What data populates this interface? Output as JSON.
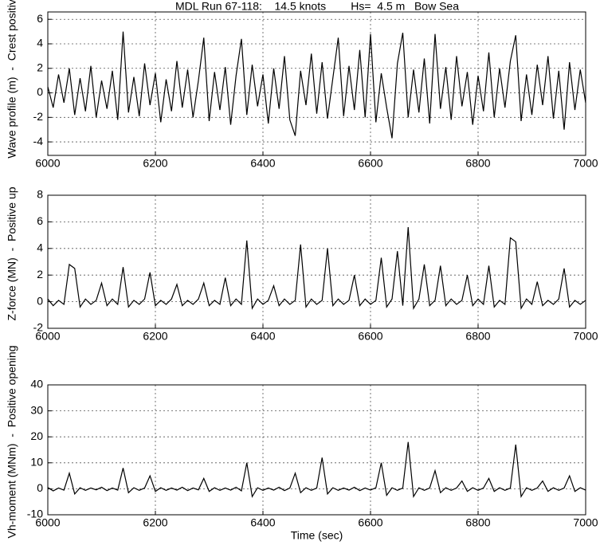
{
  "chart_data": [
    {
      "type": "line",
      "title": "MDL Run 67-118:    14.5 knots        Hs=  4.5 m   Bow Sea",
      "ylabel": "Wave profile (m)  -  Crest positive",
      "grid": true,
      "color": "#000000",
      "xlim": [
        6000,
        7000
      ],
      "xticks": [
        6000,
        6200,
        6400,
        6600,
        6800,
        7000
      ],
      "ylim": [
        -5.1,
        6.6
      ],
      "yticks": [
        -4,
        -2,
        0,
        2,
        4,
        6
      ],
      "x": [
        6000,
        6010,
        6020,
        6030,
        6040,
        6050,
        6060,
        6070,
        6080,
        6090,
        6100,
        6110,
        6120,
        6130,
        6140,
        6150,
        6160,
        6170,
        6180,
        6190,
        6200,
        6210,
        6220,
        6230,
        6240,
        6250,
        6260,
        6270,
        6280,
        6290,
        6300,
        6310,
        6320,
        6330,
        6340,
        6350,
        6360,
        6370,
        6380,
        6390,
        6400,
        6410,
        6420,
        6430,
        6440,
        6450,
        6460,
        6470,
        6480,
        6490,
        6500,
        6510,
        6520,
        6530,
        6540,
        6550,
        6560,
        6570,
        6580,
        6590,
        6600,
        6610,
        6620,
        6630,
        6640,
        6650,
        6660,
        6670,
        6680,
        6690,
        6700,
        6710,
        6720,
        6730,
        6740,
        6750,
        6760,
        6770,
        6780,
        6790,
        6800,
        6810,
        6820,
        6830,
        6840,
        6850,
        6860,
        6870,
        6880,
        6890,
        6900,
        6910,
        6920,
        6930,
        6940,
        6950,
        6960,
        6970,
        6980,
        6990,
        7000
      ],
      "values": [
        0.5,
        -1.2,
        1.5,
        -0.8,
        2.0,
        -1.8,
        1.2,
        -1.5,
        2.2,
        -2.0,
        1.0,
        -1.3,
        1.8,
        -2.2,
        5.0,
        -1.6,
        1.3,
        -1.9,
        2.4,
        -1.0,
        1.6,
        -2.4,
        1.1,
        -1.5,
        2.6,
        -1.2,
        1.9,
        -2.0,
        1.0,
        4.5,
        -2.3,
        1.7,
        -1.4,
        2.1,
        -2.6,
        1.4,
        4.4,
        -1.8,
        2.3,
        -1.1,
        1.5,
        -2.5,
        2.0,
        -1.3,
        3.0,
        -2.2,
        -3.5,
        1.8,
        -1.0,
        3.2,
        -1.7,
        2.5,
        -2.1,
        1.2,
        4.5,
        -1.9,
        2.2,
        -1.4,
        3.5,
        -2.0,
        4.8,
        -2.4,
        1.6,
        -1.2,
        -3.7,
        2.4,
        4.9,
        -2.0,
        1.9,
        -1.6,
        2.8,
        -2.5,
        4.8,
        -1.3,
        2.1,
        -2.2,
        3.0,
        -1.1,
        1.7,
        -2.6,
        1.4,
        -1.5,
        3.3,
        -2.0,
        2.0,
        -1.2,
        2.6,
        4.7,
        -2.3,
        1.5,
        -1.8,
        2.3,
        -1.0,
        3.0,
        -2.1,
        1.8,
        -3.0,
        2.5,
        -1.4,
        1.9,
        -0.8
      ]
    },
    {
      "type": "line",
      "ylabel": "Z-force (MN)  -  Positive up",
      "grid": true,
      "color": "#000000",
      "xlim": [
        6000,
        7000
      ],
      "xticks": [
        6000,
        6200,
        6400,
        6600,
        6800,
        7000
      ],
      "ylim": [
        -2,
        8
      ],
      "yticks": [
        -2,
        0,
        2,
        4,
        6,
        8
      ],
      "x": [
        6000,
        6010,
        6020,
        6030,
        6040,
        6050,
        6060,
        6070,
        6080,
        6090,
        6100,
        6110,
        6120,
        6130,
        6140,
        6150,
        6160,
        6170,
        6180,
        6190,
        6200,
        6210,
        6220,
        6230,
        6240,
        6250,
        6260,
        6270,
        6280,
        6290,
        6300,
        6310,
        6320,
        6330,
        6340,
        6350,
        6360,
        6370,
        6380,
        6390,
        6400,
        6410,
        6420,
        6430,
        6440,
        6450,
        6460,
        6470,
        6480,
        6490,
        6500,
        6510,
        6520,
        6530,
        6540,
        6550,
        6560,
        6570,
        6580,
        6590,
        6600,
        6610,
        6620,
        6630,
        6640,
        6650,
        6660,
        6670,
        6680,
        6690,
        6700,
        6710,
        6720,
        6730,
        6740,
        6750,
        6760,
        6770,
        6780,
        6790,
        6800,
        6810,
        6820,
        6830,
        6840,
        6850,
        6860,
        6870,
        6880,
        6890,
        6900,
        6910,
        6920,
        6930,
        6940,
        6950,
        6960,
        6970,
        6980,
        6990,
        7000
      ],
      "values": [
        0.2,
        -0.3,
        0.1,
        -0.2,
        2.8,
        2.5,
        -0.4,
        0.2,
        -0.2,
        0.1,
        1.4,
        -0.3,
        0.2,
        -0.2,
        2.6,
        -0.4,
        0.1,
        -0.2,
        0.2,
        2.2,
        -0.3,
        0.1,
        -0.2,
        0.2,
        1.3,
        -0.3,
        0.1,
        -0.2,
        0.2,
        1.4,
        -0.3,
        0.1,
        -0.2,
        1.8,
        -0.3,
        0.2,
        -0.2,
        4.6,
        -0.5,
        0.2,
        -0.2,
        0.1,
        1.2,
        -0.3,
        0.2,
        -0.2,
        0.1,
        4.3,
        -0.4,
        0.2,
        -0.2,
        0.1,
        4.0,
        -0.3,
        0.2,
        -0.2,
        0.1,
        2.0,
        -0.3,
        0.2,
        -0.2,
        0.1,
        3.3,
        -0.4,
        0.2,
        3.8,
        -0.3,
        5.6,
        -0.5,
        0.2,
        2.8,
        -0.3,
        0.1,
        2.7,
        -0.3,
        0.2,
        -0.2,
        0.1,
        2.0,
        -0.3,
        0.2,
        -0.2,
        2.7,
        -0.4,
        0.1,
        -0.2,
        4.8,
        4.5,
        -0.5,
        0.2,
        -0.2,
        1.5,
        -0.3,
        0.1,
        -0.2,
        0.2,
        2.5,
        -0.4,
        0.1,
        -0.2,
        0.1
      ]
    },
    {
      "type": "line",
      "ylabel": "Vh-moment (MNm)  -  Positive opening",
      "xlabel": "Time (sec)",
      "grid": true,
      "color": "#000000",
      "xlim": [
        6000,
        7000
      ],
      "xticks": [
        6000,
        6200,
        6400,
        6600,
        6800,
        7000
      ],
      "ylim": [
        -10,
        40
      ],
      "yticks": [
        -10,
        0,
        10,
        20,
        30,
        40
      ],
      "x": [
        6000,
        6010,
        6020,
        6030,
        6040,
        6050,
        6060,
        6070,
        6080,
        6090,
        6100,
        6110,
        6120,
        6130,
        6140,
        6150,
        6160,
        6170,
        6180,
        6190,
        6200,
        6210,
        6220,
        6230,
        6240,
        6250,
        6260,
        6270,
        6280,
        6290,
        6300,
        6310,
        6320,
        6330,
        6340,
        6350,
        6360,
        6370,
        6380,
        6390,
        6400,
        6410,
        6420,
        6430,
        6440,
        6450,
        6460,
        6470,
        6480,
        6490,
        6500,
        6510,
        6520,
        6530,
        6540,
        6550,
        6560,
        6570,
        6580,
        6590,
        6600,
        6610,
        6620,
        6630,
        6640,
        6650,
        6660,
        6670,
        6680,
        6690,
        6700,
        6710,
        6720,
        6730,
        6740,
        6750,
        6760,
        6770,
        6780,
        6790,
        6800,
        6810,
        6820,
        6830,
        6840,
        6850,
        6860,
        6870,
        6880,
        6890,
        6900,
        6910,
        6920,
        6930,
        6940,
        6950,
        6960,
        6970,
        6980,
        6990,
        7000
      ],
      "values": [
        0.5,
        -0.8,
        0.3,
        -0.5,
        6,
        -2,
        0.4,
        -0.6,
        0.3,
        -0.4,
        0.6,
        -0.7,
        0.3,
        -0.5,
        8,
        -1.5,
        0.4,
        -0.6,
        0.3,
        5,
        -1,
        0.4,
        -0.6,
        0.3,
        -0.5,
        0.6,
        -0.7,
        0.3,
        -0.4,
        4,
        -1,
        0.4,
        -0.6,
        0.3,
        -0.5,
        0.6,
        -0.8,
        10,
        -3,
        0.4,
        -0.6,
        0.3,
        -0.5,
        0.6,
        -0.7,
        0.3,
        6,
        -1.5,
        0.4,
        -0.6,
        0.3,
        12,
        -2,
        0.4,
        -0.6,
        0.3,
        -0.5,
        0.6,
        -0.7,
        0.3,
        -0.5,
        0.4,
        10,
        -2.5,
        0.4,
        -0.6,
        0.3,
        18,
        -3,
        0.4,
        -0.6,
        0.3,
        7,
        -1.5,
        0.4,
        -0.6,
        0.3,
        3,
        -1,
        0.4,
        -0.6,
        0.3,
        4,
        -1,
        0.4,
        -0.6,
        0.3,
        17,
        -3,
        0.4,
        -0.6,
        0.3,
        3,
        -1,
        0.4,
        -0.6,
        0.3,
        5,
        -1,
        0.4,
        -0.5
      ]
    }
  ]
}
